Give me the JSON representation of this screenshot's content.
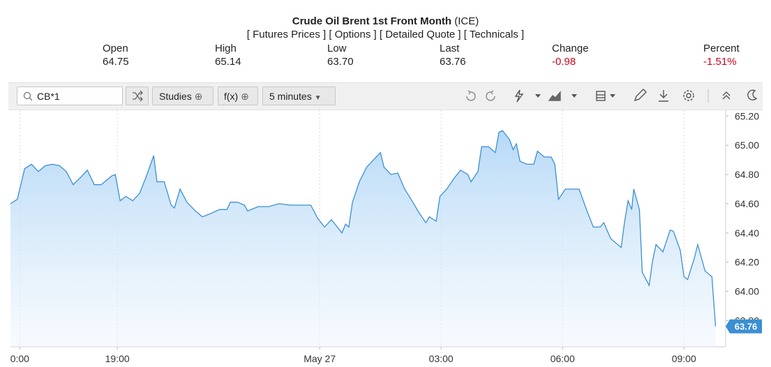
{
  "header": {
    "title": "Crude Oil Brent 1st Front Month",
    "exchange": "(ICE)",
    "links": "[ Futures Prices ] [ Options ] [ Detailed Quote ] [ Technicals ]"
  },
  "quote": {
    "labels": [
      "Open",
      "High",
      "Low",
      "Last",
      "Change",
      "Percent"
    ],
    "values": [
      "64.75",
      "65.14",
      "63.70",
      "63.76",
      "-0.98",
      "-1.51%"
    ]
  },
  "toolbar": {
    "symbol": "CB*1",
    "buttons": [
      "Studies",
      "f(x)",
      "5 minutes"
    ]
  },
  "chart_data": {
    "type": "area",
    "xgrid": true,
    "xlim": [
      -7.64,
      10.03
    ],
    "ylim": [
      63.62,
      65.24
    ],
    "xticks": [
      {
        "value": -7.41,
        "label": "0:00"
      },
      {
        "value": -5,
        "label": "19:00"
      },
      {
        "value": 0,
        "label": "May 27"
      },
      {
        "value": 3,
        "label": "03:00"
      },
      {
        "value": 6,
        "label": "06:00"
      },
      {
        "value": 9,
        "label": "09:00"
      }
    ],
    "yticks": [
      {
        "value": 65.2,
        "label": "65.20"
      },
      {
        "value": 65.0,
        "label": "65.00"
      },
      {
        "value": 64.8,
        "label": "64.80"
      },
      {
        "value": 64.6,
        "label": "64.60"
      },
      {
        "value": 64.4,
        "label": "64.40"
      },
      {
        "value": 64.2,
        "label": "64.20"
      },
      {
        "value": 64.0,
        "label": "64.00"
      },
      {
        "value": 63.8,
        "label": "63.80"
      }
    ],
    "series": [
      {
        "color": "#3b8fd3",
        "x": [
          -7.64,
          -7.47,
          -7.29,
          -7.12,
          -6.95,
          -6.78,
          -6.6,
          -6.43,
          -6.26,
          -6.09,
          -5.91,
          -5.74,
          -5.57,
          -5.4,
          -5.14,
          -5.05,
          -4.93,
          -4.79,
          -4.62,
          -4.45,
          -4.28,
          -4.1,
          -4.02,
          -3.84,
          -3.67,
          -3.59,
          -3.45,
          -3.28,
          -3.07,
          -2.9,
          -2.72,
          -2.47,
          -2.29,
          -2.21,
          -2.03,
          -1.86,
          -1.78,
          -1.52,
          -1.26,
          -1.0,
          -0.74,
          -0.48,
          -0.22,
          -0.05,
          0.12,
          0.29,
          0.55,
          0.64,
          0.72,
          0.81,
          0.98,
          1.16,
          1.33,
          1.5,
          1.59,
          1.76,
          1.93,
          2.1,
          2.28,
          2.45,
          2.62,
          2.71,
          2.88,
          2.97,
          3.14,
          3.31,
          3.48,
          3.66,
          3.74,
          3.91,
          4.0,
          4.17,
          4.34,
          4.43,
          4.52,
          4.69,
          4.78,
          4.86,
          4.95,
          5.12,
          5.29,
          5.38,
          5.55,
          5.72,
          5.81,
          5.9,
          6.07,
          6.24,
          6.41,
          6.59,
          6.76,
          6.93,
          7.02,
          7.19,
          7.45,
          7.53,
          7.62,
          7.71,
          7.76,
          7.9,
          7.97,
          8.14,
          8.22,
          8.31,
          8.48,
          8.66,
          8.74,
          8.91,
          9.0,
          9.09,
          9.26,
          9.34,
          9.52,
          9.69,
          9.78
        ],
        "values": [
          64.6,
          64.63,
          64.84,
          64.87,
          64.82,
          64.86,
          64.87,
          64.86,
          64.82,
          64.73,
          64.78,
          64.83,
          64.73,
          64.73,
          64.79,
          64.8,
          64.62,
          64.65,
          64.62,
          64.67,
          64.79,
          64.93,
          64.75,
          64.75,
          64.59,
          64.57,
          64.7,
          64.61,
          64.55,
          64.51,
          64.53,
          64.56,
          64.56,
          64.61,
          64.61,
          64.59,
          64.55,
          64.58,
          64.58,
          64.6,
          64.59,
          64.59,
          64.59,
          64.5,
          64.44,
          64.49,
          64.4,
          64.46,
          64.44,
          64.61,
          64.75,
          64.85,
          64.9,
          64.95,
          64.85,
          64.8,
          64.81,
          64.7,
          64.62,
          64.54,
          64.47,
          64.51,
          64.48,
          64.65,
          64.7,
          64.77,
          64.83,
          64.8,
          64.75,
          64.82,
          64.99,
          64.99,
          64.95,
          65.09,
          65.1,
          65.04,
          64.97,
          65.01,
          64.89,
          64.87,
          64.87,
          64.96,
          64.92,
          64.92,
          64.87,
          64.63,
          64.7,
          64.7,
          64.7,
          64.56,
          64.44,
          64.44,
          64.47,
          64.36,
          64.3,
          64.47,
          64.62,
          64.56,
          64.7,
          64.56,
          64.13,
          64.04,
          64.2,
          64.32,
          64.27,
          64.42,
          64.41,
          64.28,
          64.1,
          64.08,
          64.23,
          64.32,
          64.14,
          64.1,
          63.76
        ]
      }
    ]
  }
}
